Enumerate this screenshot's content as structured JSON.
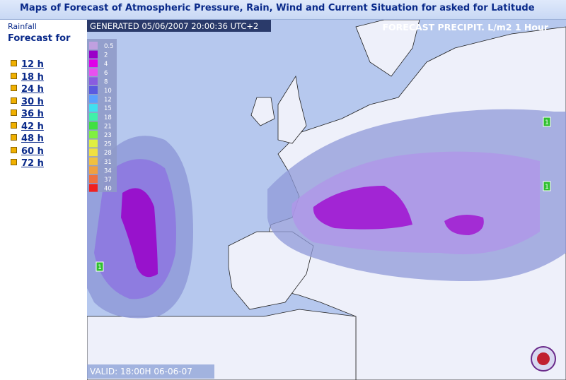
{
  "header": {
    "title": "Maps of Forecast of Atmospheric Pressure, Rain, Wind and Current Situation for asked for Latitude"
  },
  "sidebar": {
    "section": "Rainfall",
    "heading": "Forecast for",
    "links": [
      "12 h",
      "18 h",
      "24 h",
      "30 h",
      "36 h",
      "42 h",
      "48 h",
      "60 h",
      "72 h"
    ]
  },
  "map": {
    "generated": "GENERATED 05/06/2007 20:00:36 UTC+2",
    "title": "FORECAST  PRECIPIT. L/m2  1 Hour",
    "valid": "VALID: 18:00H 06-06-07",
    "legend": [
      {
        "label": "0.5",
        "color": "#c0a0e0"
      },
      {
        "label": "2",
        "color": "#9a00c8"
      },
      {
        "label": "4",
        "color": "#e000e8"
      },
      {
        "label": "6",
        "color": "#e850f0"
      },
      {
        "label": "8",
        "color": "#8a5ce0"
      },
      {
        "label": "10",
        "color": "#5a5ae0"
      },
      {
        "label": "12",
        "color": "#5aa0ff"
      },
      {
        "label": "15",
        "color": "#40e0f0"
      },
      {
        "label": "18",
        "color": "#40f0a8"
      },
      {
        "label": "21",
        "color": "#40e040"
      },
      {
        "label": "23",
        "color": "#80f040"
      },
      {
        "label": "25",
        "color": "#e0f040"
      },
      {
        "label": "28",
        "color": "#f0e040"
      },
      {
        "label": "31",
        "color": "#f0c040"
      },
      {
        "label": "34",
        "color": "#f0a040"
      },
      {
        "label": "37",
        "color": "#f07040"
      },
      {
        "label": "40",
        "color": "#f02020"
      }
    ],
    "markers": [
      "1",
      "1",
      "1"
    ]
  }
}
